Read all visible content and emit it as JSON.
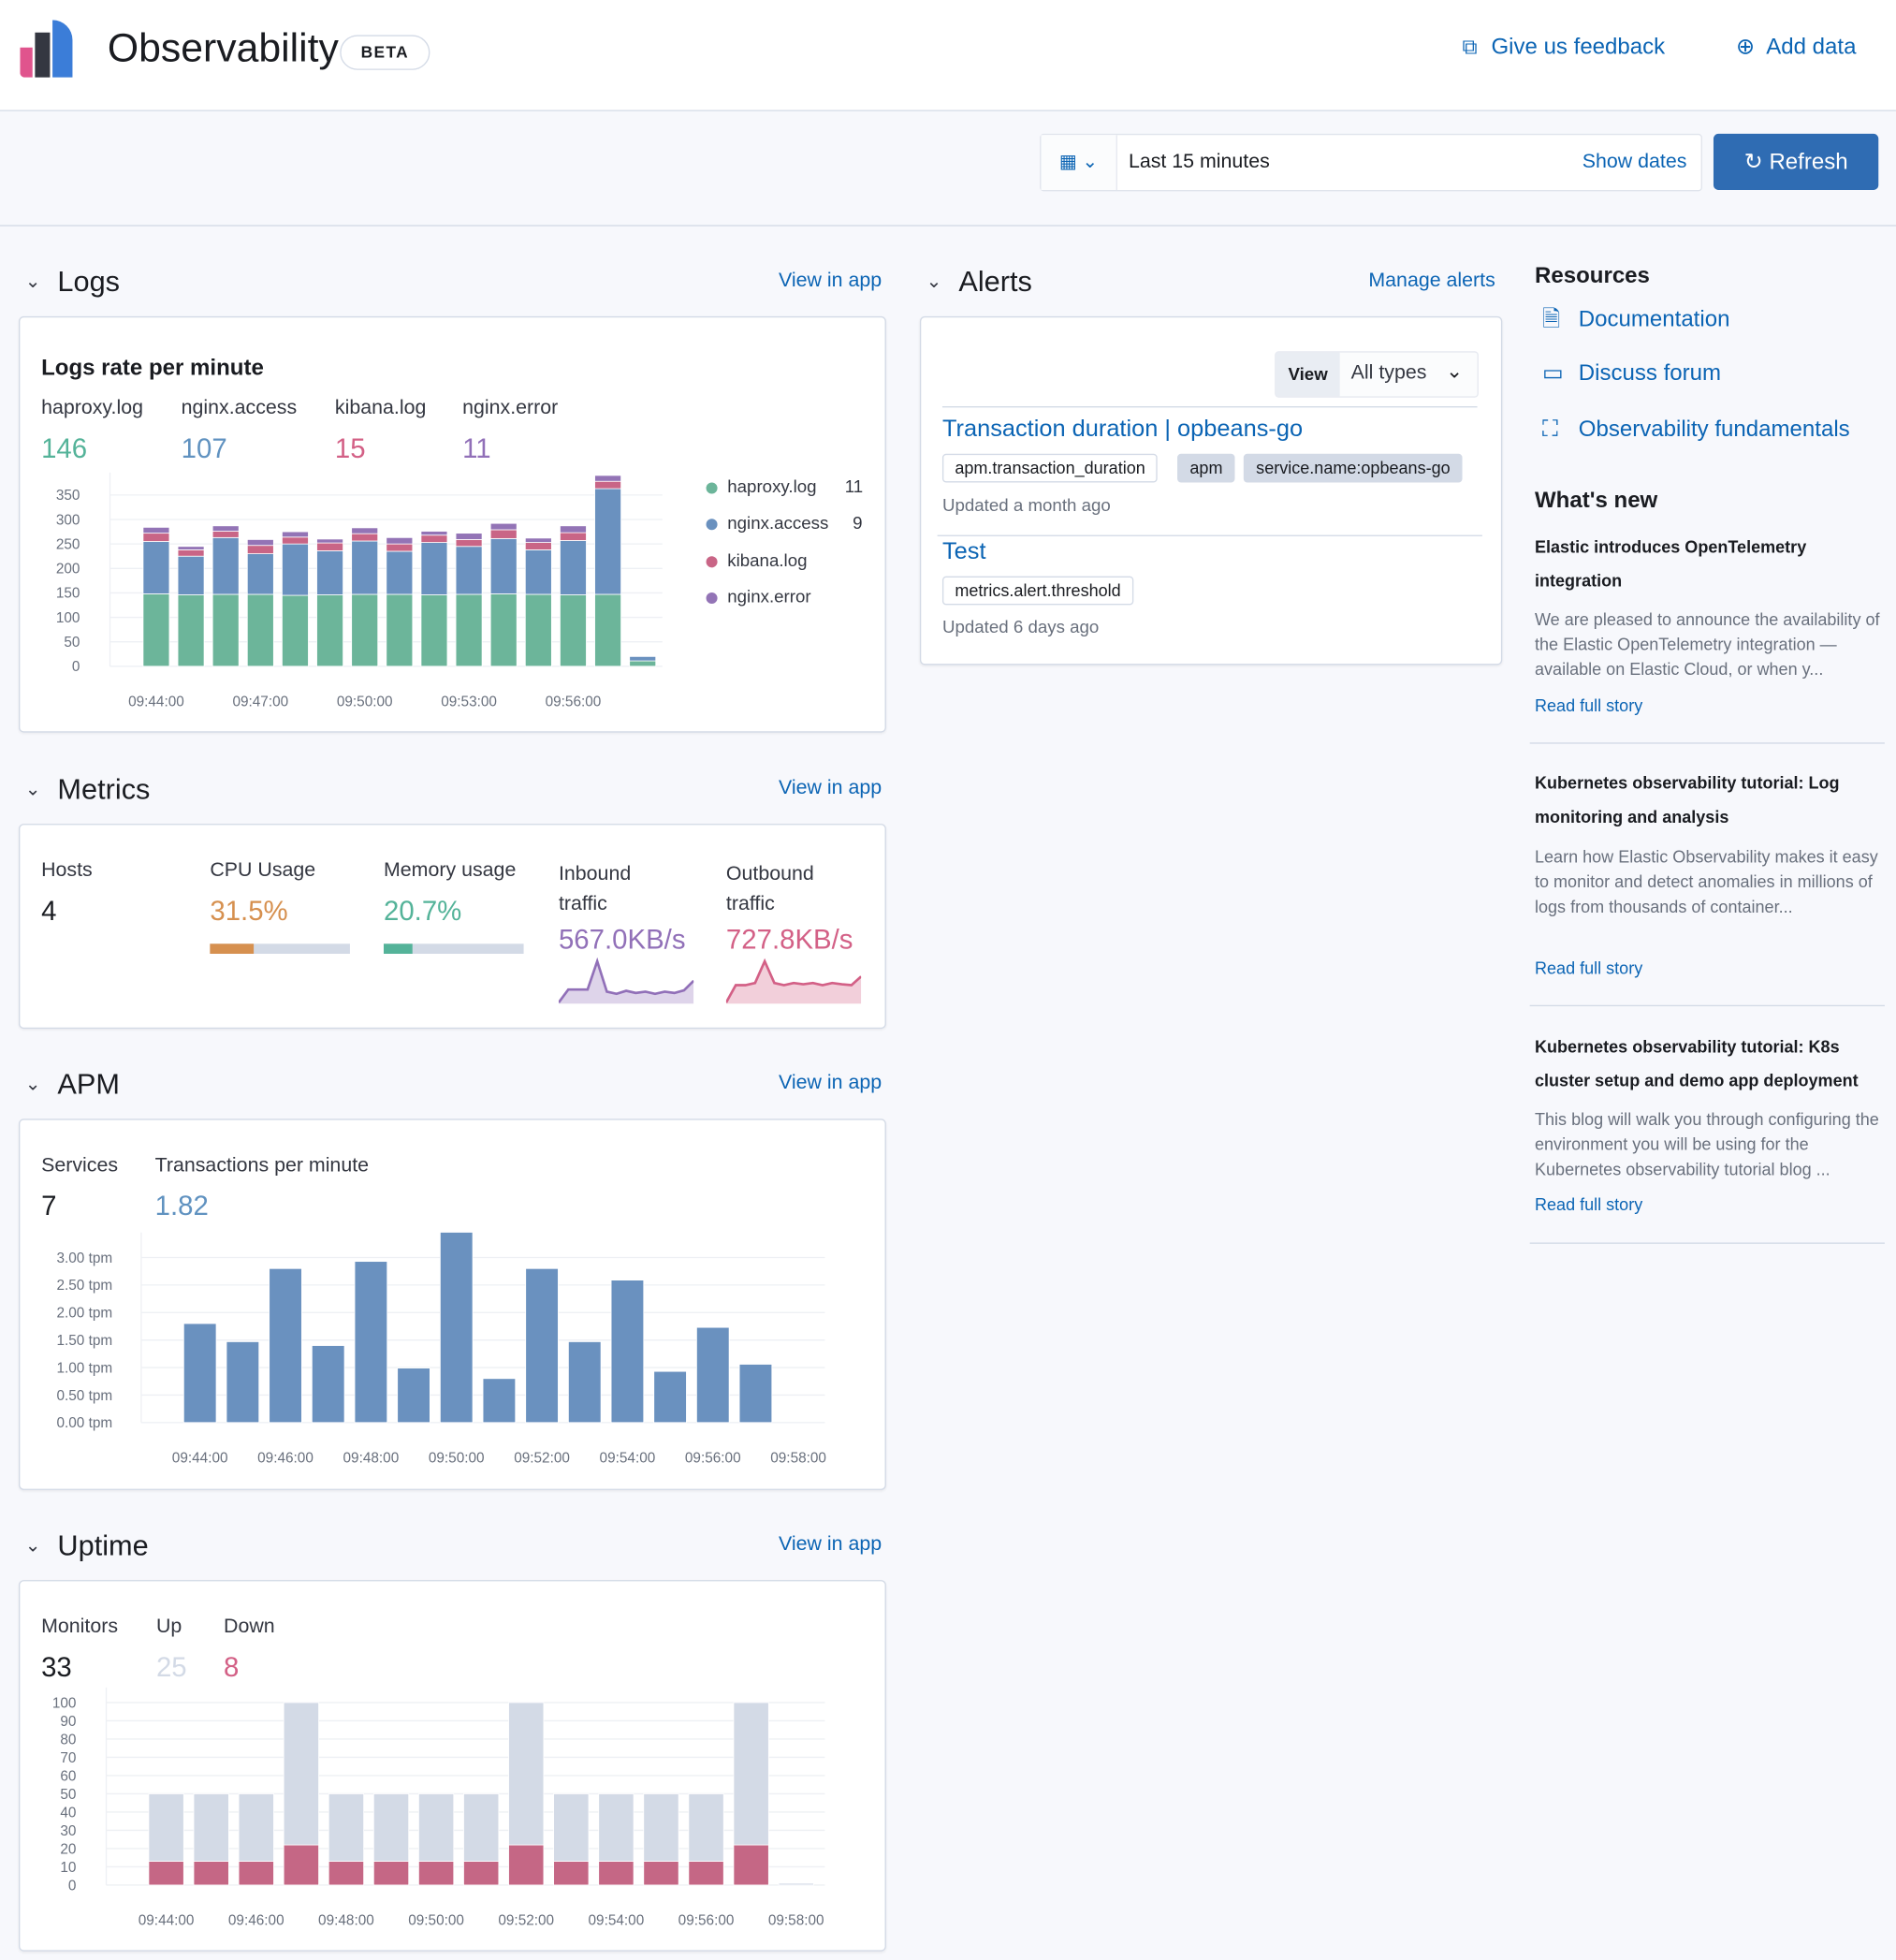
{
  "header": {
    "title": "Observability",
    "badge": "BETA",
    "feedback_label": "Give us feedback",
    "add_data_label": "Add data"
  },
  "datepicker": {
    "value": "Last 15 minutes",
    "show_dates_label": "Show dates",
    "refresh_label": "Refresh"
  },
  "logs": {
    "title": "Logs",
    "view_in_app": "View in app",
    "chart_title": "Logs rate per minute",
    "stats": [
      {
        "label": "haproxy.log",
        "value": "146",
        "color": "#54b399"
      },
      {
        "label": "nginx.access",
        "value": "107",
        "color": "#6092c0"
      },
      {
        "label": "kibana.log",
        "value": "15",
        "color": "#d36086"
      },
      {
        "label": "nginx.error",
        "value": "11",
        "color": "#9170b8"
      }
    ],
    "legend": [
      {
        "label": "haproxy.log",
        "value": "11"
      },
      {
        "label": "nginx.access",
        "value": "9"
      },
      {
        "label": "kibana.log",
        "value": ""
      },
      {
        "label": "nginx.error",
        "value": ""
      }
    ]
  },
  "metrics": {
    "title": "Metrics",
    "view_in_app": "View in app",
    "hosts_label": "Hosts",
    "hosts_value": "4",
    "cpu_label": "CPU Usage",
    "cpu_value": "31.5%",
    "cpu_fraction": 0.315,
    "memory_label": "Memory usage",
    "memory_value": "20.7%",
    "memory_fraction": 0.207,
    "inbound_label": "Inbound traffic",
    "inbound_value": "567.0KB/s",
    "outbound_label": "Outbound traffic",
    "outbound_value": "727.8KB/s",
    "colors": {
      "cpu": "#d6904f",
      "memory": "#54b399",
      "inbound": "#9170b8",
      "outbound": "#d36086"
    }
  },
  "apm": {
    "title": "APM",
    "view_in_app": "View in app",
    "services_label": "Services",
    "services_value": "7",
    "tpm_label": "Transactions per minute",
    "tpm_value": "1.82"
  },
  "uptime": {
    "title": "Uptime",
    "view_in_app": "View in app",
    "monitors_label": "Monitors",
    "monitors_value": "33",
    "up_label": "Up",
    "up_value": "25",
    "down_label": "Down",
    "down_value": "8"
  },
  "alerts": {
    "title": "Alerts",
    "manage_label": "Manage alerts",
    "view_label": "View",
    "filter_value": "All types",
    "items": [
      {
        "name": "Transaction duration | opbeans-go",
        "tags": [
          "apm.transaction_duration",
          "apm",
          "service.name:opbeans-go"
        ],
        "updated": "Updated a month ago"
      },
      {
        "name": "Test",
        "tags": [
          "metrics.alert.threshold"
        ],
        "updated": "Updated 6 days ago"
      }
    ]
  },
  "resources": {
    "title": "Resources",
    "links": [
      {
        "label": "Documentation",
        "icon": "document-icon"
      },
      {
        "label": "Discuss forum",
        "icon": "chat-icon"
      },
      {
        "label": "Observability fundamentals",
        "icon": "training-icon"
      }
    ]
  },
  "whats_new": {
    "title": "What's new",
    "read_label": "Read full story",
    "items": [
      {
        "title": "Elastic introduces OpenTelemetry integration",
        "desc": "We are pleased to announce the availability of the Elastic OpenTelemetry integration — available on Elastic Cloud, or when y..."
      },
      {
        "title": "Kubernetes observability tutorial: Log monitoring and analysis",
        "desc": "Learn how Elastic Observability makes it easy to monitor and detect anomalies in millions of logs from thousands of container..."
      },
      {
        "title": "Kubernetes observability tutorial: K8s cluster setup and demo app deployment",
        "desc": "This blog will walk you through configuring the environment you will be using for the Kubernetes observability tutorial blog ..."
      }
    ]
  },
  "chart_data": [
    {
      "type": "bar",
      "stacked": true,
      "id": "logs",
      "ylim": [
        0,
        390
      ],
      "yticks": [
        0,
        50,
        100,
        150,
        200,
        250,
        300,
        350
      ],
      "categories": [
        "09:44:00",
        "09:45:00",
        "09:46:00",
        "09:47:00",
        "09:48:00",
        "09:49:00",
        "09:50:00",
        "09:51:00",
        "09:52:00",
        "09:53:00",
        "09:54:00",
        "09:55:00",
        "09:56:00",
        "09:57:00",
        "09:58:00"
      ],
      "xticks": [
        "09:44:00",
        "09:47:00",
        "09:50:00",
        "09:53:00",
        "09:56:00"
      ],
      "series": [
        {
          "name": "haproxy.log",
          "color": "#6cb59a",
          "values": [
            148,
            146,
            147,
            147,
            145,
            146,
            147,
            147,
            146,
            147,
            148,
            147,
            146,
            147,
            11
          ]
        },
        {
          "name": "nginx.access",
          "color": "#6a91bf",
          "values": [
            107,
            79,
            116,
            83,
            105,
            90,
            109,
            88,
            107,
            98,
            113,
            91,
            111,
            216,
            9
          ]
        },
        {
          "name": "kibana.log",
          "color": "#c96586",
          "values": [
            17,
            13,
            13,
            17,
            14,
            16,
            15,
            15,
            15,
            14,
            18,
            15,
            16,
            15,
            0
          ]
        },
        {
          "name": "nginx.error",
          "color": "#9374b6",
          "values": [
            12,
            7,
            11,
            12,
            11,
            8,
            12,
            13,
            8,
            13,
            13,
            9,
            14,
            12,
            0
          ]
        }
      ],
      "legend": "right",
      "grid": true
    },
    {
      "type": "bar",
      "id": "apm",
      "ylim": [
        0,
        3.5
      ],
      "yticks": [
        "0.00 tpm",
        "0.50 tpm",
        "1.00 tpm",
        "1.50 tpm",
        "2.00 tpm",
        "2.50 tpm",
        "3.00 tpm"
      ],
      "categories": [
        "09:44:00",
        "09:45:00",
        "09:46:00",
        "09:47:00",
        "09:48:00",
        "09:49:00",
        "09:50:00",
        "09:51:00",
        "09:52:00",
        "09:53:00",
        "09:54:00",
        "09:55:00",
        "09:56:00",
        "09:57:00"
      ],
      "xticks": [
        "09:44:00",
        "09:46:00",
        "09:48:00",
        "09:50:00",
        "09:52:00",
        "09:54:00",
        "09:56:00",
        "09:58:00"
      ],
      "series": [
        {
          "color": "#6a91bf",
          "values": [
            1.8,
            1.47,
            2.8,
            1.4,
            2.93,
            0.99,
            3.46,
            0.8,
            2.8,
            1.47,
            2.59,
            0.93,
            1.73,
            1.06
          ]
        }
      ],
      "grid": true
    },
    {
      "type": "bar",
      "stacked": true,
      "id": "uptime",
      "ylim": [
        0,
        100
      ],
      "yticks": [
        0,
        10,
        20,
        30,
        40,
        50,
        60,
        70,
        80,
        90,
        100
      ],
      "categories": [
        "09:44:00",
        "09:45:00",
        "09:46:00",
        "09:47:00",
        "09:48:00",
        "09:49:00",
        "09:50:00",
        "09:51:00",
        "09:52:00",
        "09:53:00",
        "09:54:00",
        "09:55:00",
        "09:56:00",
        "09:57:00",
        "09:58:00"
      ],
      "xticks": [
        "09:44:00",
        "09:46:00",
        "09:48:00",
        "09:50:00",
        "09:52:00",
        "09:54:00",
        "09:56:00",
        "09:58:00"
      ],
      "series": [
        {
          "name": "Down",
          "color": "#c56785",
          "values": [
            13,
            13,
            13,
            22,
            13,
            13,
            13,
            13,
            22,
            13,
            13,
            13,
            13,
            22,
            0
          ]
        },
        {
          "name": "Up",
          "color": "#d3dae6",
          "values": [
            37,
            37,
            37,
            78,
            37,
            37,
            37,
            37,
            78,
            37,
            37,
            37,
            37,
            78,
            1
          ]
        }
      ],
      "grid": true
    },
    {
      "type": "area",
      "id": "inbound",
      "color": "#9170b8",
      "values": [
        0,
        30,
        30,
        30,
        95,
        25,
        20,
        27,
        22,
        25,
        20,
        25,
        22,
        28,
        50
      ]
    },
    {
      "type": "area",
      "id": "outbound",
      "color": "#d36086",
      "values": [
        0,
        40,
        40,
        45,
        95,
        45,
        40,
        45,
        42,
        45,
        40,
        45,
        42,
        40,
        60
      ]
    }
  ]
}
